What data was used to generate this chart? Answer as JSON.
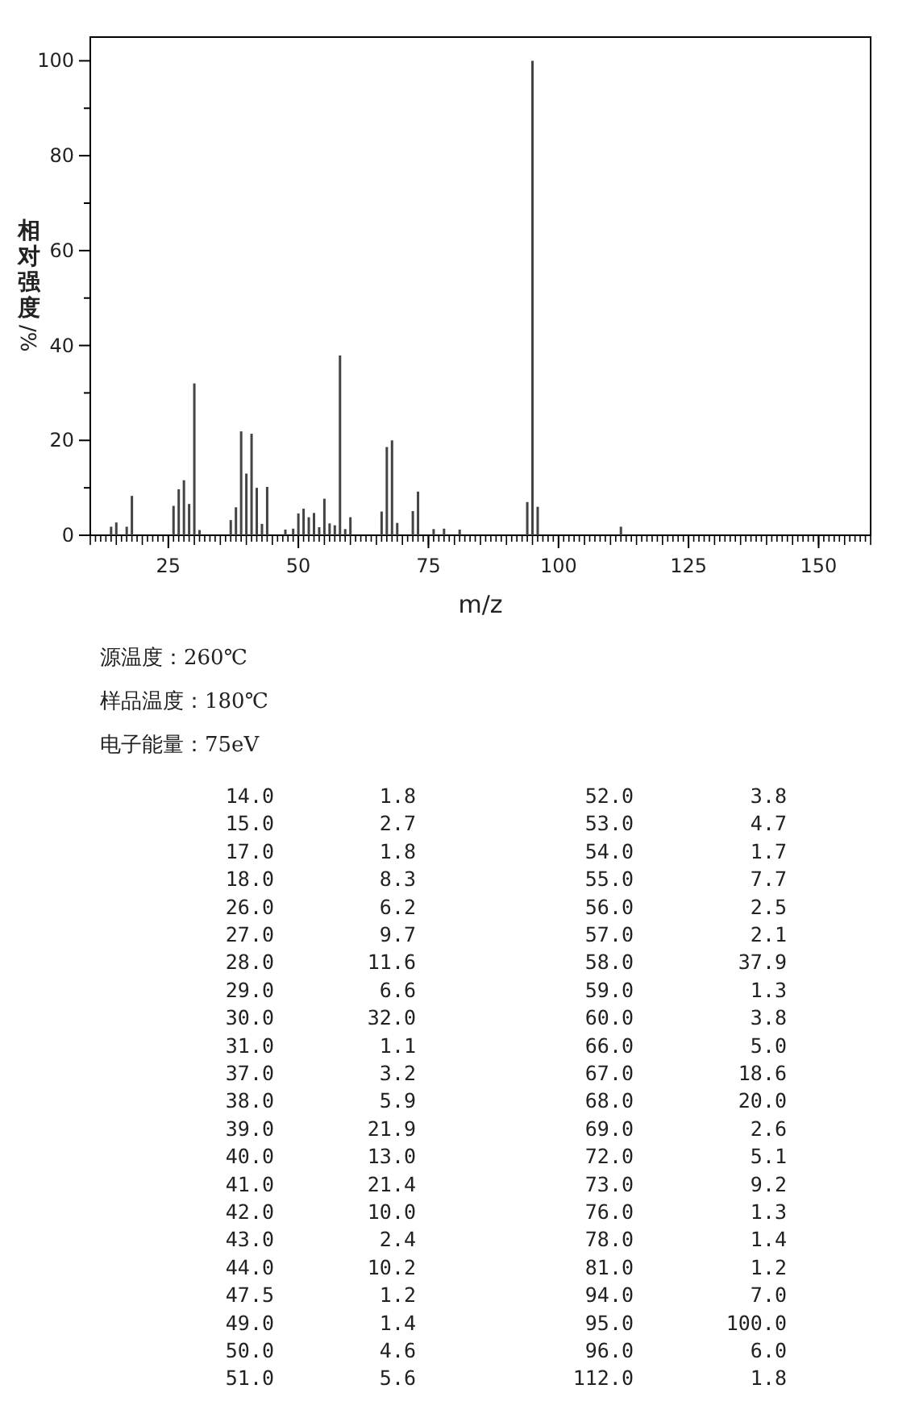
{
  "chart_data": {
    "type": "bar",
    "ylabel": "相对强度/%",
    "xlabel": "m/z",
    "annotations": [
      "源温度：260℃",
      "样品温度：180℃",
      "电子能量：75eV",
      "14.0",
      "1.8",
      "15.0",
      "2.7",
      "17.0",
      "1.8",
      "18.0",
      "8.3",
      "26.0",
      "6.2",
      "27.0",
      "9.7",
      "28.0",
      "11.6",
      "29.0",
      "6.6",
      "30.0",
      "32.0",
      "31.0",
      "1.1",
      "37.0",
      "3.2",
      "38.0",
      "5.9",
      "39.0",
      "21.9",
      "40.0",
      "13.0",
      "41.0",
      "21.4",
      "42.0",
      "10.0",
      "43.0",
      "2.4",
      "44.0",
      "10.2",
      "47.5",
      "1.2",
      "49.0",
      "1.4",
      "50.0",
      "4.6",
      "51.0",
      "5.6",
      "52.0",
      "3.8",
      "53.0",
      "4.7",
      "54.0",
      "1.7",
      "55.0",
      "7.7",
      "56.0",
      "2.5",
      "57.0",
      "2.1",
      "58.0",
      "37.9",
      "59.0",
      "1.3",
      "60.0",
      "3.8",
      "66.0",
      "5.0",
      "67.0",
      "18.6",
      "68.0",
      "20.0",
      "69.0",
      "2.6",
      "72.0",
      "5.1",
      "73.0",
      "9.2",
      "76.0",
      "1.3",
      "78.0",
      "1.4",
      "81.0",
      "1.2",
      "94.0",
      "7.0",
      "95.0",
      "100.0",
      "96.0",
      "6.0",
      "112.0",
      "1.8"
    ],
    "x": [
      14.0,
      15.0,
      17.0,
      18.0,
      26.0,
      27.0,
      28.0,
      29.0,
      30.0,
      31.0,
      37.0,
      38.0,
      39.0,
      40.0,
      41.0,
      42.0,
      43.0,
      44.0,
      47.5,
      49.0,
      50.0,
      51.0,
      52.0,
      53.0,
      54.0,
      55.0,
      56.0,
      57.0,
      58.0,
      59.0,
      60.0,
      66.0,
      67.0,
      68.0,
      69.0,
      72.0,
      73.0,
      76.0,
      78.0,
      81.0,
      94.0,
      95.0,
      96.0,
      112.0
    ],
    "values": [
      1.8,
      2.7,
      1.8,
      8.3,
      6.2,
      9.7,
      11.6,
      6.6,
      32.0,
      1.1,
      3.2,
      5.9,
      21.9,
      13.0,
      21.4,
      10.0,
      2.4,
      10.2,
      1.2,
      1.4,
      4.6,
      5.6,
      3.8,
      4.7,
      1.7,
      7.7,
      2.5,
      2.1,
      37.9,
      1.3,
      3.8,
      5.0,
      18.6,
      20.0,
      2.6,
      5.1,
      9.2,
      1.3,
      1.4,
      1.2,
      7.0,
      100.0,
      6.0,
      1.8
    ],
    "color": "#444444",
    "xlim": [
      10,
      160
    ],
    "xticks": [
      25,
      50,
      75,
      100,
      125,
      150
    ],
    "ylim": [
      0,
      105
    ],
    "yticks": [
      0,
      20,
      40,
      60,
      80,
      100
    ]
  }
}
